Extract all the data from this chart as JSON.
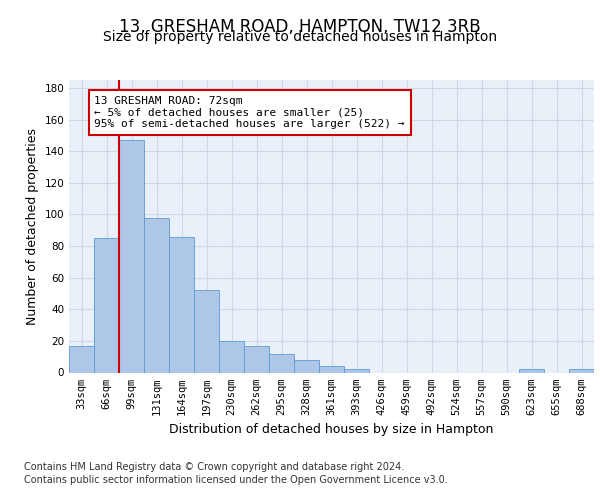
{
  "title1": "13, GRESHAM ROAD, HAMPTON, TW12 3RB",
  "title2": "Size of property relative to detached houses in Hampton",
  "xlabel": "Distribution of detached houses by size in Hampton",
  "ylabel": "Number of detached properties",
  "categories": [
    "33sqm",
    "66sqm",
    "99sqm",
    "131sqm",
    "164sqm",
    "197sqm",
    "230sqm",
    "262sqm",
    "295sqm",
    "328sqm",
    "361sqm",
    "393sqm",
    "426sqm",
    "459sqm",
    "492sqm",
    "524sqm",
    "557sqm",
    "590sqm",
    "623sqm",
    "655sqm",
    "688sqm"
  ],
  "values": [
    17,
    85,
    147,
    98,
    86,
    52,
    20,
    17,
    12,
    8,
    4,
    2,
    0,
    0,
    0,
    0,
    0,
    0,
    2,
    0,
    2
  ],
  "bar_color": "#aec6e8",
  "bar_edge_color": "#5b9bd5",
  "grid_color": "#d0d8e8",
  "background_color": "#eaf0f8",
  "vline_x": 1.5,
  "vline_color": "#cc0000",
  "annotation_text": "13 GRESHAM ROAD: 72sqm\n← 5% of detached houses are smaller (25)\n95% of semi-detached houses are larger (522) →",
  "annotation_box_color": "#ffffff",
  "annotation_box_edge": "#cc0000",
  "ylim": [
    0,
    185
  ],
  "yticks": [
    0,
    20,
    40,
    60,
    80,
    100,
    120,
    140,
    160,
    180
  ],
  "footer1": "Contains HM Land Registry data © Crown copyright and database right 2024.",
  "footer2": "Contains public sector information licensed under the Open Government Licence v3.0.",
  "title1_fontsize": 12,
  "title2_fontsize": 10,
  "xlabel_fontsize": 9,
  "ylabel_fontsize": 9,
  "tick_fontsize": 7.5,
  "footer_fontsize": 7,
  "annot_fontsize": 8
}
